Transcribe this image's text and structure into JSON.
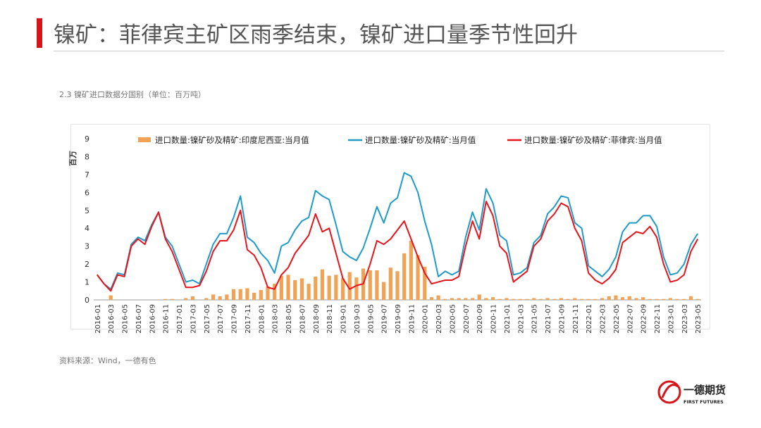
{
  "header": {
    "title": "镍矿：菲律宾主矿区雨季结束，镍矿进口量季节性回升"
  },
  "subtitle": "2.3 镍矿进口数据分国别（单位：百万吨）",
  "source": "资料来源：Wind，一德有色",
  "logo": {
    "name": "一德期货",
    "english": "FIRST FUTURES"
  },
  "chart_data": {
    "type": "bar-line",
    "y_label": "百万",
    "categories": [
      "2016-01",
      null,
      "2016-03",
      null,
      "2016-05",
      null,
      "2016-07",
      null,
      "2016-09",
      null,
      "2016-11",
      null,
      "2017-01",
      null,
      "2017-03",
      null,
      "2017-05",
      null,
      "2017-07",
      null,
      "2017-09",
      null,
      "2017-11",
      null,
      "2018-01",
      null,
      "2018-03",
      null,
      "2018-05",
      null,
      "2018-07",
      null,
      "2018-09",
      null,
      "2018-11",
      null,
      "2019-01",
      null,
      "2019-03",
      null,
      "2019-05",
      null,
      "2019-07",
      null,
      "2019-09",
      null,
      "2019-11",
      null,
      "2020-01",
      null,
      "2020-03",
      null,
      "2020-05",
      null,
      "2020-07",
      null,
      "2020-09",
      null,
      "2020-11",
      null,
      "2021-01",
      null,
      "2021-03",
      null,
      "2021-05",
      null,
      "2021-07",
      null,
      "2021-09",
      null,
      "2021-11",
      null,
      "2022-01",
      null,
      "2022-03",
      null,
      "2022-05",
      null,
      "2022-07",
      null,
      "2022-09",
      null,
      "2022-11",
      null,
      "2023-01",
      null,
      "2023-03",
      null,
      "2023-05"
    ],
    "series": [
      {
        "name": "进口数量:镍矿砂及精矿:印度尼西亚:当月值",
        "kind": "bar",
        "color": "#f0a255",
        "values": [
          0,
          0,
          0.25,
          0,
          0,
          0,
          0,
          0,
          0,
          0,
          0.05,
          0.05,
          0,
          0.1,
          0.2,
          0,
          0.1,
          0.3,
          0.2,
          0.3,
          0.6,
          0.6,
          0.65,
          0.4,
          0.55,
          0.75,
          0.9,
          1.35,
          1.4,
          1.1,
          1.2,
          0.9,
          1.3,
          1.7,
          1.35,
          1.4,
          1.2,
          1.55,
          1.25,
          1.75,
          1.65,
          1.65,
          1.0,
          1.8,
          1.6,
          2.6,
          3.3,
          2.5,
          1.85,
          0.15,
          0.25,
          0.05,
          0.1,
          0.1,
          0.1,
          0.1,
          0.3,
          0.1,
          0.15,
          0.05,
          0.1,
          0.05,
          0.05,
          0.05,
          0.1,
          0.05,
          0.1,
          0.05,
          0.1,
          0.05,
          0.1,
          0.05,
          0.05,
          0.05,
          0.1,
          0.2,
          0.25,
          0.15,
          0.2,
          0.1,
          0.15,
          0.05,
          0.05,
          0.05,
          0.1,
          0.05,
          0.05,
          0.2,
          0.05
        ]
      },
      {
        "name": "进口数量:镍矿砂及精矿:当月值",
        "kind": "line",
        "color": "#1f9bc9",
        "values": [
          1.4,
          0.9,
          0.6,
          1.5,
          1.4,
          3.1,
          3.5,
          3.3,
          4.2,
          4.9,
          3.5,
          3.0,
          2.0,
          1.0,
          1.1,
          0.9,
          2.0,
          3.1,
          3.7,
          3.7,
          4.6,
          5.8,
          3.5,
          3.2,
          2.6,
          2.2,
          1.5,
          3.0,
          3.2,
          3.9,
          4.4,
          4.6,
          6.1,
          5.8,
          5.6,
          4.2,
          2.7,
          2.4,
          2.2,
          2.9,
          4.0,
          5.2,
          4.3,
          5.4,
          5.7,
          7.1,
          6.9,
          6.0,
          4.4,
          3.1,
          1.3,
          1.6,
          1.4,
          1.6,
          3.5,
          4.9,
          3.9,
          6.2,
          5.4,
          3.6,
          3.3,
          1.4,
          1.5,
          1.8,
          3.2,
          3.6,
          4.8,
          5.2,
          5.8,
          5.7,
          4.3,
          4.0,
          1.9,
          1.6,
          1.3,
          1.7,
          2.4,
          3.8,
          4.3,
          4.3,
          4.7,
          4.7,
          4.1,
          2.4,
          1.4,
          1.5,
          2.0,
          3.1,
          3.7
        ]
      },
      {
        "name": "进口数量:镍矿砂及精矿:菲律宾:当月值",
        "kind": "line",
        "color": "#e8141c",
        "values": [
          1.4,
          0.9,
          0.5,
          1.4,
          1.3,
          3.0,
          3.4,
          3.1,
          4.1,
          4.9,
          3.4,
          2.7,
          1.7,
          0.7,
          0.7,
          0.8,
          1.6,
          2.7,
          3.3,
          3.3,
          3.9,
          5.0,
          2.8,
          2.5,
          1.8,
          0.7,
          0.6,
          1.4,
          1.8,
          2.6,
          3.1,
          3.6,
          4.8,
          3.8,
          4.0,
          2.6,
          1.2,
          0.6,
          0.8,
          0.9,
          2.0,
          3.3,
          3.1,
          3.4,
          3.9,
          4.4,
          3.4,
          2.4,
          1.5,
          0.9,
          1.0,
          1.1,
          1.1,
          1.3,
          3.0,
          4.4,
          3.4,
          5.5,
          4.7,
          3.0,
          2.6,
          1.0,
          1.3,
          1.6,
          3.0,
          3.4,
          4.4,
          4.8,
          5.4,
          5.2,
          4.0,
          3.3,
          1.5,
          1.1,
          0.9,
          1.2,
          1.7,
          3.2,
          3.5,
          3.8,
          3.7,
          4.1,
          3.5,
          2.0,
          1.0,
          1.1,
          1.4,
          2.7,
          3.4
        ]
      }
    ],
    "ylim": [
      0,
      9
    ],
    "yticks": [
      0,
      1,
      2,
      3,
      4,
      5,
      6,
      7,
      8,
      9
    ],
    "legend": "top"
  }
}
